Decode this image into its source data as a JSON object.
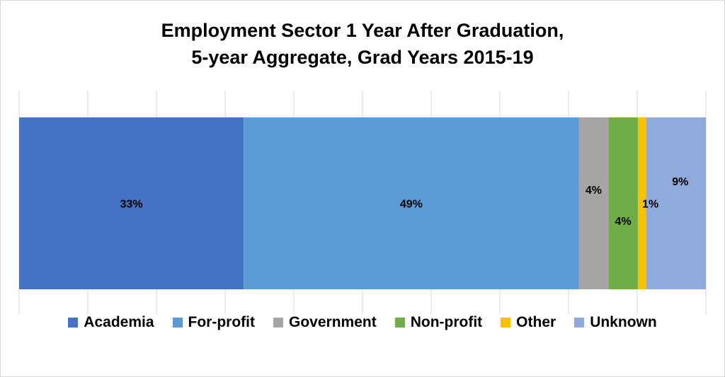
{
  "chart_data": {
    "type": "bar",
    "orientation": "horizontal",
    "stacked": true,
    "title": [
      "Employment Sector 1 Year After Graduation,",
      "5-year Aggregate, Grad Years 2015-19"
    ],
    "categories": [
      ""
    ],
    "xlim": [
      0,
      100
    ],
    "grid": true,
    "legend_position": "bottom",
    "series": [
      {
        "name": "Academia",
        "value": 32.7,
        "label": "33%",
        "color": "#4472C4"
      },
      {
        "name": "For-profit",
        "value": 48.8,
        "label": "49%",
        "color": "#5B9BD5"
      },
      {
        "name": "Government",
        "value": 4.3,
        "label": "4%",
        "color": "#A5A5A5"
      },
      {
        "name": "Non-profit",
        "value": 4.3,
        "label": "4%",
        "color": "#70AD47"
      },
      {
        "name": "Other",
        "value": 1.2,
        "label": "1%",
        "color": "#FFC000"
      },
      {
        "name": "Unknown",
        "value": 8.7,
        "label": "9%",
        "color": "#8FAADC"
      }
    ]
  }
}
